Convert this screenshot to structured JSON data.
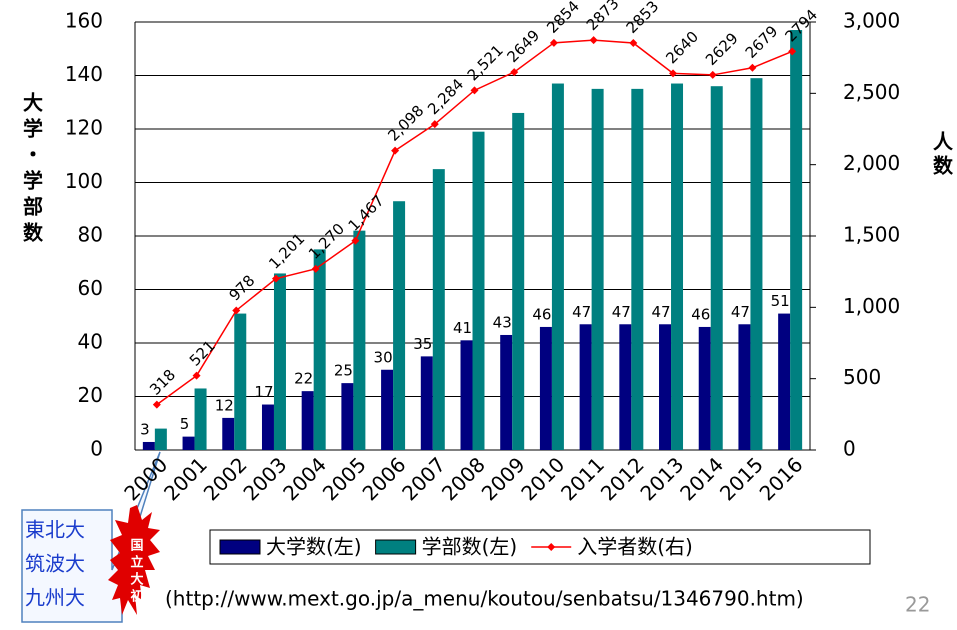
{
  "chart_data": {
    "type": "bar_line",
    "y_label": "大学・学部数",
    "y2_label": "人数",
    "categories": [
      "2000",
      "2001",
      "2002",
      "2003",
      "2004",
      "2005",
      "2006",
      "2007",
      "2008",
      "2009",
      "2010",
      "2011",
      "2012",
      "2013",
      "2014",
      "2015",
      "2016"
    ],
    "series": [
      {
        "name": "大学数(左)",
        "type": "bar",
        "color": "#000080",
        "show_labels": true,
        "values": [
          3,
          5,
          12,
          17,
          22,
          25,
          30,
          35,
          41,
          43,
          46,
          47,
          47,
          47,
          46,
          47,
          51
        ]
      },
      {
        "name": "学部数(左)",
        "type": "bar",
        "color": "#008080",
        "show_labels": false,
        "values": [
          8,
          23,
          51,
          66,
          75,
          82,
          93,
          105,
          119,
          126,
          137,
          135,
          135,
          137,
          136,
          139,
          157
        ]
      },
      {
        "name": "入学者数(右)",
        "type": "line",
        "color": "#ff0000",
        "axis": "y2",
        "show_labels": true,
        "values": [
          318,
          521,
          978,
          1201,
          1270,
          1467,
          2098,
          2284,
          2521,
          2649,
          2854,
          2873,
          2853,
          2640,
          2629,
          2679,
          2794
        ],
        "value_labels": [
          "318",
          "521",
          "978",
          "1,201",
          "1,270",
          "1,467",
          "2,098",
          "2,284",
          "2,521",
          "2649",
          "2854",
          "2873",
          "2853",
          "2640",
          "2629",
          "2679",
          "2794"
        ]
      }
    ],
    "ylim": [
      0,
      160
    ],
    "yticks": [
      0,
      20,
      40,
      60,
      80,
      100,
      120,
      140,
      160
    ],
    "y2lim": [
      0,
      3000
    ],
    "y2ticks": [
      0,
      500,
      {
        "value": 1000,
        "label": "1,000"
      },
      {
        "value": 1500,
        "label": "1,500"
      },
      {
        "value": 2000,
        "label": "2,000"
      },
      {
        "value": 2500,
        "label": "2,500"
      },
      {
        "value": 3000,
        "label": "3,000"
      }
    ],
    "grid": true,
    "callout_lines": [
      "東北大",
      "筑波大",
      "九州大"
    ],
    "badge_text": "国立大初",
    "source": "(http://www.mext.go.jp/a_menu/koutou/senbatsu/1346790.htm)",
    "page_number": "22"
  }
}
